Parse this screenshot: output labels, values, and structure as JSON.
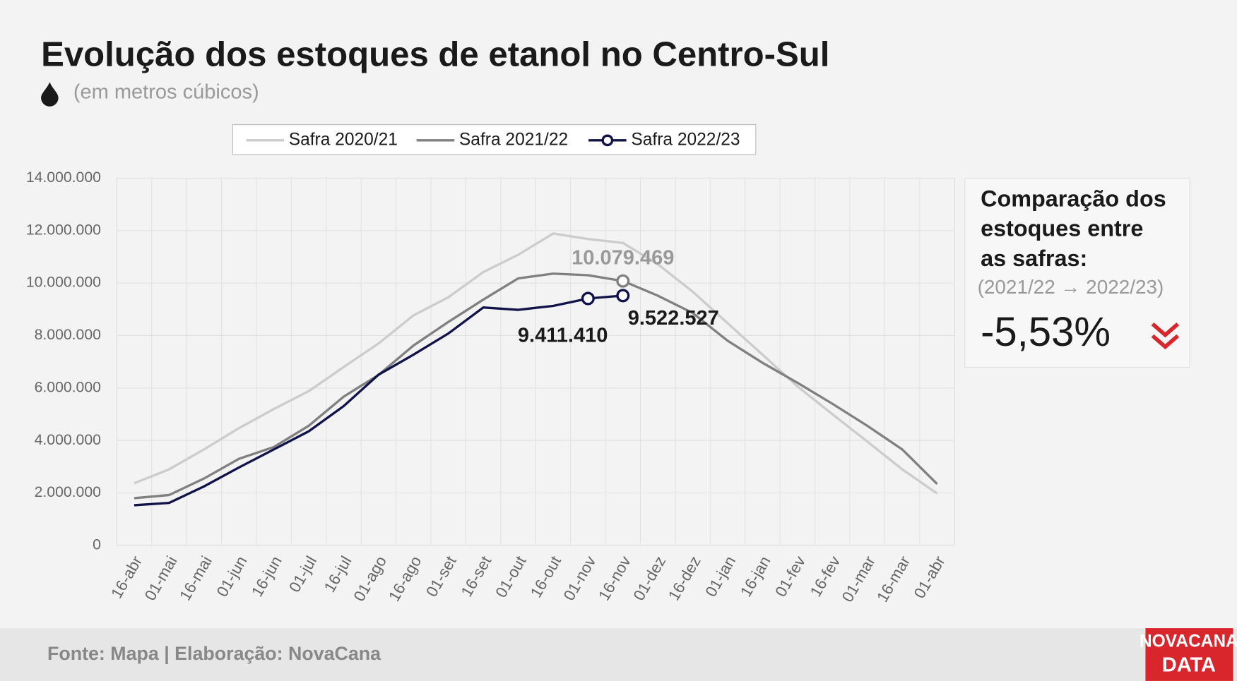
{
  "chart_data": {
    "type": "line",
    "title": "Evolução dos estoques de etanol no Centro-Sul",
    "subtitle": "(em metros cúbicos)",
    "categories": [
      "16-abr",
      "01-mai",
      "16-mai",
      "01-jun",
      "16-jun",
      "01-jul",
      "16-jul",
      "01-ago",
      "16-ago",
      "01-set",
      "16-set",
      "01-out",
      "16-out",
      "01-nov",
      "16-nov",
      "01-dez",
      "16-dez",
      "01-jan",
      "16-jan",
      "01-fev",
      "16-fev",
      "01-mar",
      "16-mar",
      "01-abr"
    ],
    "series": [
      {
        "name": "Safra 2020/21",
        "color": "#cccccc",
        "values": [
          2370000,
          2900000,
          3660000,
          4470000,
          5200000,
          5880000,
          6800000,
          7700000,
          8770000,
          9460000,
          10420000,
          11080000,
          11890000,
          11680000,
          11530000,
          10720000,
          9670000,
          8470000,
          7270000,
          6060000,
          5000000,
          3960000,
          2900000,
          1980000
        ]
      },
      {
        "name": "Safra 2021/22",
        "color": "#808080",
        "values": [
          1800000,
          1920000,
          2550000,
          3300000,
          3750000,
          4560000,
          5670000,
          6500000,
          7620000,
          8520000,
          9370000,
          10180000,
          10360000,
          10300000,
          10079469,
          9520000,
          8860000,
          7800000,
          6960000,
          6200000,
          5400000,
          4560000,
          3660000,
          2340000
        ],
        "value_labels": [
          null,
          null,
          null,
          null,
          null,
          null,
          null,
          null,
          null,
          null,
          null,
          null,
          null,
          null,
          "10.079.469",
          null,
          null,
          null,
          null,
          null,
          null,
          null,
          null,
          null
        ]
      },
      {
        "name": "Safra 2022/23",
        "color": "#12124a",
        "values": [
          1530000,
          1620000,
          2250000,
          2970000,
          3660000,
          4350000,
          5310000,
          6510000,
          7270000,
          8080000,
          9070000,
          8980000,
          9130000,
          9411410,
          9522527,
          null,
          null,
          null,
          null,
          null,
          null,
          null,
          null,
          null
        ],
        "value_labels": [
          null,
          null,
          null,
          null,
          null,
          null,
          null,
          null,
          null,
          null,
          null,
          null,
          null,
          "9.411.410",
          "9.522.527",
          null,
          null,
          null,
          null,
          null,
          null,
          null,
          null,
          null
        ]
      }
    ],
    "ylim": [
      0,
      14000000
    ],
    "yticks": [
      0,
      {
        "value": 2000000,
        "label": "2.000.000"
      },
      {
        "value": 4000000,
        "label": "4.000.000"
      },
      {
        "value": 6000000,
        "label": "6.000.000"
      },
      {
        "value": 8000000,
        "label": "8.000.000"
      },
      {
        "value": 10000000,
        "label": "10.000.000"
      },
      {
        "value": 12000000,
        "label": "12.000.000"
      },
      {
        "value": 14000000,
        "label": "14.000.000"
      }
    ],
    "grid": true,
    "legend": "top"
  },
  "panel": {
    "title_lines": [
      "Comparação dos",
      "estoques entre",
      "as safras:"
    ],
    "period": "(2021/22 → 2022/23)",
    "change": "-5,53%"
  },
  "footer": {
    "source": "Fonte: Mapa | Elaboração: NovaCana",
    "logo_lines": [
      "NOVACANA",
      "DATA"
    ]
  }
}
